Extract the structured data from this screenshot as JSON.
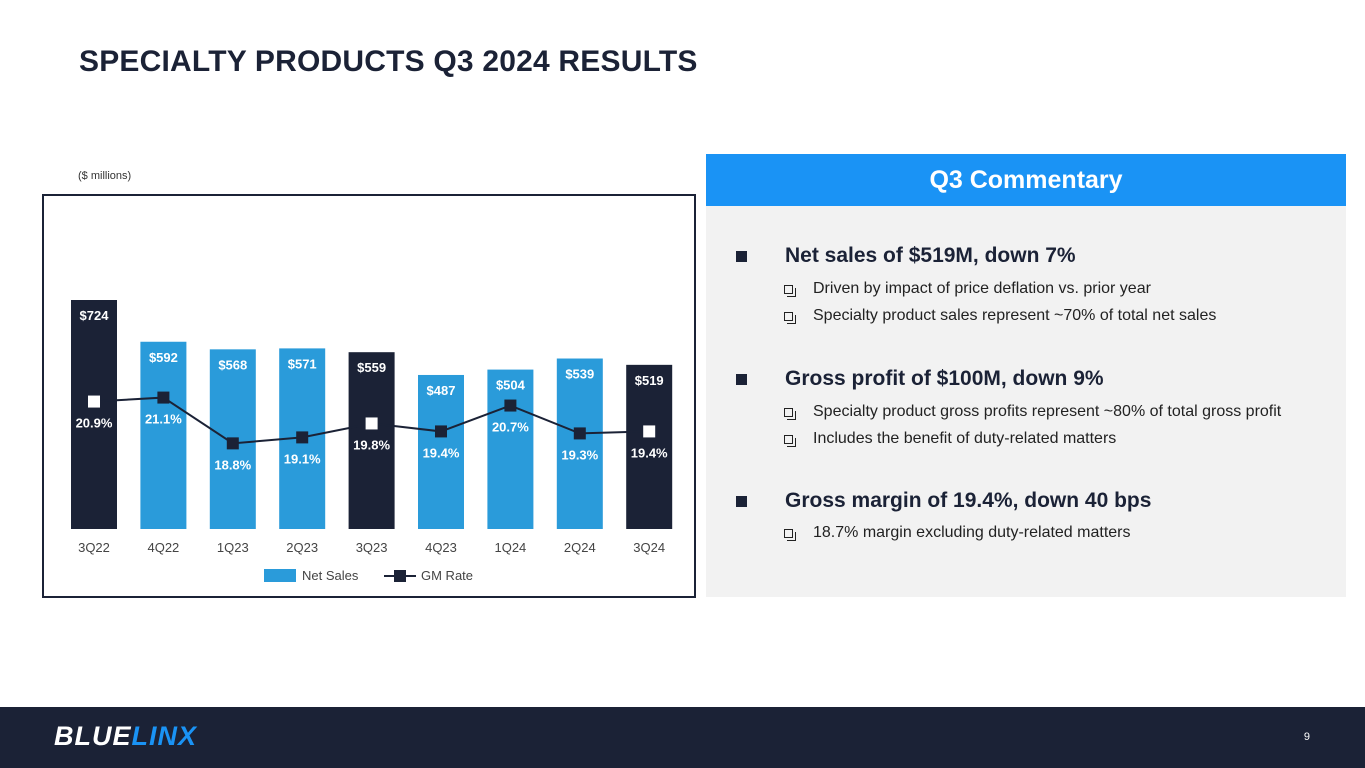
{
  "title": "SPECIALTY PRODUCTS Q3 2024 RESULTS",
  "units_note": "($ millions)",
  "colors": {
    "net_sales_bar": "#2a9bda",
    "highlight_bar": "#1b2236",
    "accent": "#1a93f5",
    "footer_bg": "#1b2236"
  },
  "chart_data": {
    "type": "bar",
    "categories": [
      "3Q22",
      "4Q22",
      "1Q23",
      "2Q23",
      "3Q23",
      "4Q23",
      "1Q24",
      "2Q24",
      "3Q24"
    ],
    "highlighted_categories": [
      "3Q22",
      "3Q23",
      "3Q24"
    ],
    "series": [
      {
        "name": "Net Sales",
        "kind": "bar",
        "values": [
          724,
          592,
          568,
          571,
          559,
          487,
          504,
          539,
          519
        ],
        "labels": [
          "$724",
          "$592",
          "$568",
          "$571",
          "$559",
          "$487",
          "$504",
          "$539",
          "$519"
        ]
      },
      {
        "name": "GM Rate",
        "kind": "line",
        "values": [
          20.9,
          21.1,
          18.8,
          19.1,
          19.8,
          19.4,
          20.7,
          19.3,
          19.4
        ],
        "labels": [
          "20.9%",
          "21.1%",
          "18.8%",
          "19.1%",
          "19.8%",
          "19.4%",
          "20.7%",
          "19.3%",
          "19.4%"
        ]
      }
    ],
    "ylim_bars": [
      0,
      724
    ],
    "ylim_line": [
      14.5,
      26
    ],
    "legend": [
      "Net Sales",
      "GM Rate"
    ],
    "legend_position": "bottom-center"
  },
  "commentary": {
    "header": "Q3 Commentary",
    "sections": [
      {
        "heading": "Net sales of $519M, down 7%",
        "items": [
          "Driven by impact of price deflation vs. prior year",
          "Specialty product sales represent ~70% of total net sales"
        ]
      },
      {
        "heading": "Gross profit of $100M, down 9%",
        "items": [
          "Specialty product gross profits represent ~80% of total gross profit",
          "Includes the benefit of duty-related matters"
        ]
      },
      {
        "heading": "Gross margin of 19.4%, down 40 bps",
        "items": [
          "18.7% margin excluding duty-related matters"
        ]
      }
    ]
  },
  "footer": {
    "logo_blue": "BLUE",
    "logo_linx": "LINX",
    "page_number": "9"
  }
}
